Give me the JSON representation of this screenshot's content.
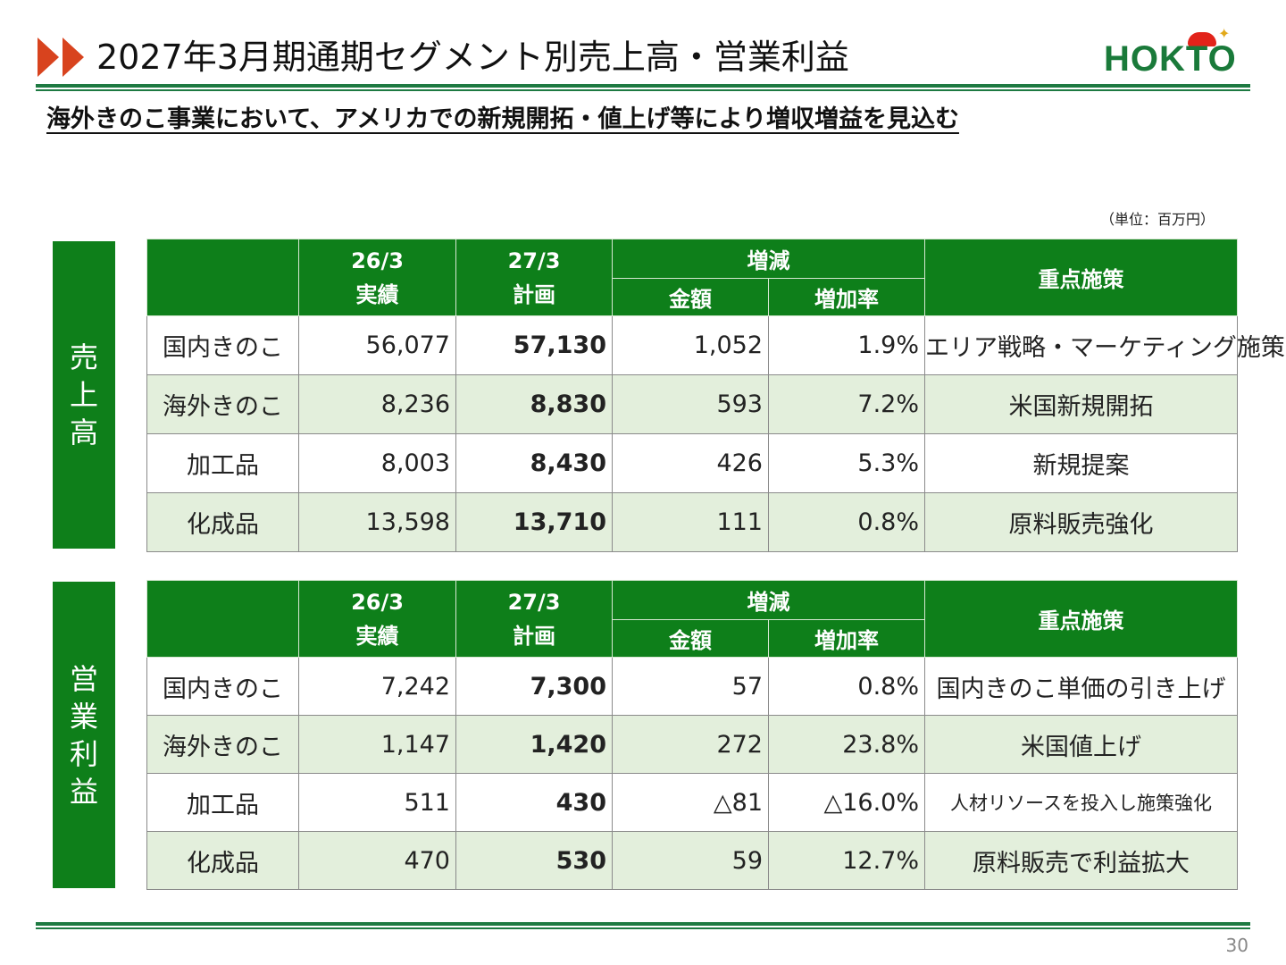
{
  "header": {
    "title": "2027年3月期通期セグメント別売上高・営業利益",
    "logo_text": "HOKTO",
    "accent_color": "#d8431e",
    "brand_color": "#0e7f1a"
  },
  "subtitle": "海外きのこ事業において、アメリカでの新規開拓・値上げ等により増収増益を見込む",
  "unit_note": "（単位：百万円）",
  "columns": {
    "col1_line1": "26/3",
    "col1_line2": "実績",
    "col2_line1": "27/3",
    "col2_line2": "計画",
    "change": "増減",
    "amount": "金額",
    "rate": "増加率",
    "policy": "重点施策"
  },
  "sales": {
    "label_chars": [
      "売",
      "上",
      "高"
    ],
    "rows": [
      {
        "segment": "国内きのこ",
        "actual": "56,077",
        "plan": "57,130",
        "amount": "1,052",
        "rate": "1.9%",
        "policy": "エリア戦略・マーケティング施策"
      },
      {
        "segment": "海外きのこ",
        "actual": "8,236",
        "plan": "8,830",
        "amount": "593",
        "rate": "7.2%",
        "policy": "米国新規開拓"
      },
      {
        "segment": "加工品",
        "actual": "8,003",
        "plan": "8,430",
        "amount": "426",
        "rate": "5.3%",
        "policy": "新規提案"
      },
      {
        "segment": "化成品",
        "actual": "13,598",
        "plan": "13,710",
        "amount": "111",
        "rate": "0.8%",
        "policy": "原料販売強化"
      }
    ]
  },
  "operating_profit": {
    "label_chars": [
      "営",
      "業",
      "利",
      "益"
    ],
    "rows": [
      {
        "segment": "国内きのこ",
        "actual": "7,242",
        "plan": "7,300",
        "amount": "57",
        "rate": "0.8%",
        "policy": "国内きのこ単価の引き上げ"
      },
      {
        "segment": "海外きのこ",
        "actual": "1,147",
        "plan": "1,420",
        "amount": "272",
        "rate": "23.8%",
        "policy": "米国値上げ"
      },
      {
        "segment": "加工品",
        "actual": "511",
        "plan": "430",
        "amount": "△81",
        "rate": "△16.0%",
        "policy": "人材リソースを投入し施策強化"
      },
      {
        "segment": "化成品",
        "actual": "470",
        "plan": "530",
        "amount": "59",
        "rate": "12.7%",
        "policy": "原料販売で利益拡大"
      }
    ]
  },
  "page_number": "30"
}
